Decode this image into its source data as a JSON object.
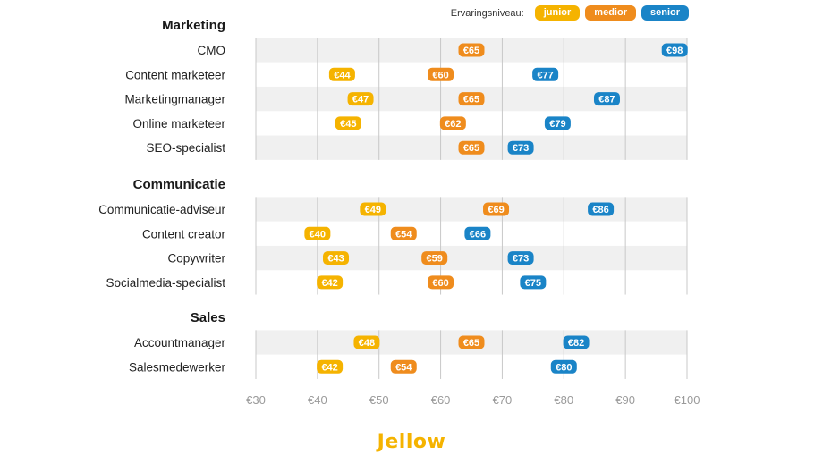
{
  "legend": {
    "title": "Ervaringsniveau:",
    "items": [
      {
        "label": "junior",
        "color": "#f5b300"
      },
      {
        "label": "medior",
        "color": "#ef8c1d"
      },
      {
        "label": "senior",
        "color": "#1a84c7"
      }
    ]
  },
  "logo_text": "Jellow",
  "chart_data": {
    "type": "scatter",
    "x_ticks": [
      "€30",
      "€40",
      "€50",
      "€60",
      "€70",
      "€80",
      "€90",
      "€100"
    ],
    "x_tick_values": [
      30,
      40,
      50,
      60,
      70,
      80,
      90,
      100
    ],
    "xlim": [
      30,
      100
    ],
    "grid": true,
    "series_colors": {
      "junior": "#f5b300",
      "medior": "#ef8c1d",
      "senior": "#1a84c7"
    },
    "groups": [
      {
        "name": "Marketing",
        "rows": [
          {
            "label": "CMO",
            "junior": null,
            "medior": 65,
            "senior": 98
          },
          {
            "label": "Content marketeer",
            "junior": 44,
            "medior": 60,
            "senior": 77
          },
          {
            "label": "Marketingmanager",
            "junior": 47,
            "medior": 65,
            "senior": 87
          },
          {
            "label": "Online marketeer",
            "junior": 45,
            "medior": 62,
            "senior": 79
          },
          {
            "label": "SEO-specialist",
            "junior": null,
            "medior": 65,
            "senior": 73
          }
        ]
      },
      {
        "name": "Communicatie",
        "rows": [
          {
            "label": "Communicatie-adviseur",
            "junior": 49,
            "medior": 69,
            "senior": 86
          },
          {
            "label": "Content creator",
            "junior": 40,
            "medior": 54,
            "senior": 66
          },
          {
            "label": "Copywriter",
            "junior": 43,
            "medior": 59,
            "senior": 73
          },
          {
            "label": "Socialmedia-specialist",
            "junior": 42,
            "medior": 60,
            "senior": 75
          }
        ]
      },
      {
        "name": "Sales",
        "rows": [
          {
            "label": "Accountmanager",
            "junior": 48,
            "medior": 65,
            "senior": 82
          },
          {
            "label": "Salesmedewerker",
            "junior": 42,
            "medior": 54,
            "senior": 80
          }
        ]
      }
    ]
  }
}
